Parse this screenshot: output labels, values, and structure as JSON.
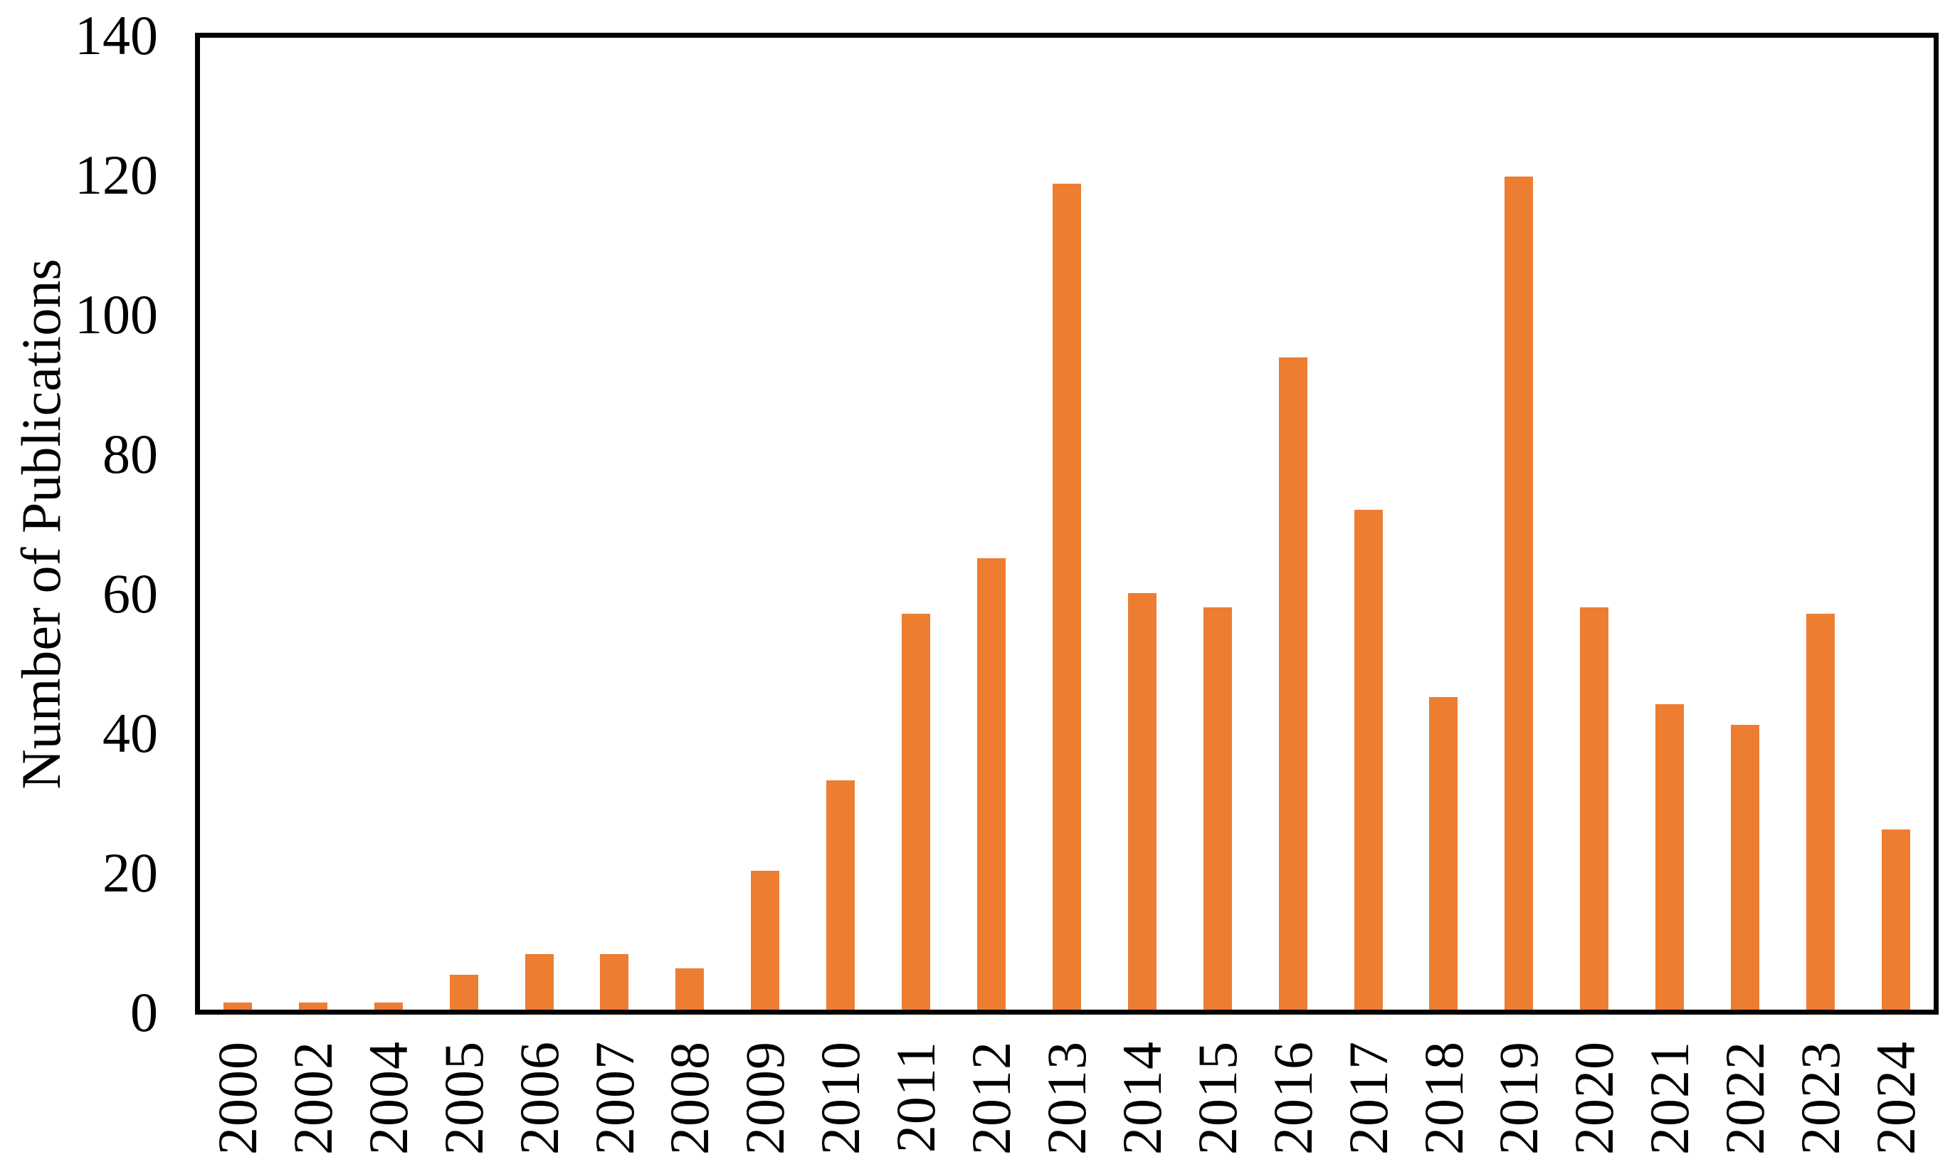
{
  "figure": {
    "background_color": "#ffffff",
    "axis_color": "#000000",
    "text_color": "#000000"
  },
  "chart_data": {
    "type": "bar",
    "title": "",
    "xlabel": "",
    "ylabel": "Number of Publications",
    "categories": [
      "2000",
      "2002",
      "2004",
      "2005",
      "2006",
      "2007",
      "2008",
      "2009",
      "2010",
      "2011",
      "2012",
      "2013",
      "2014",
      "2015",
      "2016",
      "2017",
      "2018",
      "2019",
      "2020",
      "2021",
      "2022",
      "2023",
      "2024"
    ],
    "values": [
      1,
      1,
      1,
      5,
      8,
      8,
      6,
      20,
      33,
      57,
      65,
      119,
      60,
      58,
      94,
      72,
      45,
      120,
      58,
      44,
      41,
      57,
      26
    ],
    "ylim": [
      0,
      140
    ],
    "yticks": [
      0,
      20,
      40,
      60,
      80,
      100,
      120,
      140
    ],
    "grid": false,
    "legend_position": "none",
    "bar_color": "#ED7D31",
    "x_tick_rotation_degrees": 90
  }
}
